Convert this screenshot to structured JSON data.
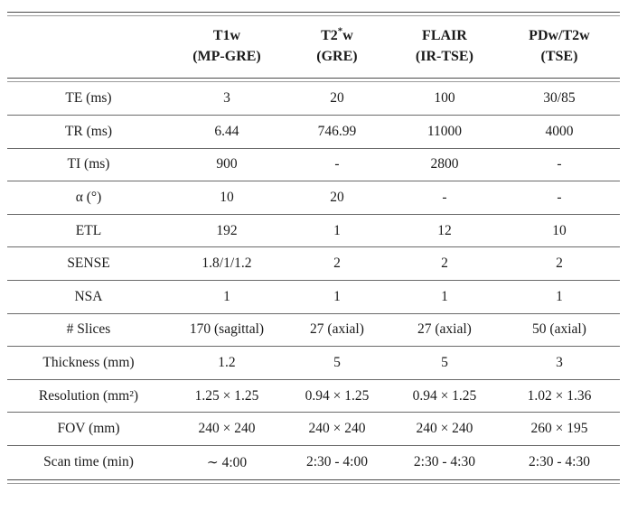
{
  "table": {
    "columns": [
      {
        "title": "",
        "subtitle": ""
      },
      {
        "title": "T1w",
        "subtitle": "(MP-GRE)"
      },
      {
        "title": "T2",
        "title_sup": "*",
        "title_end": "w",
        "subtitle": "(GRE)"
      },
      {
        "title": "FLAIR",
        "subtitle": "(IR-TSE)"
      },
      {
        "title": "PDw/T2w",
        "subtitle": "(TSE)"
      }
    ],
    "rows": [
      {
        "label": "TE (ms)",
        "values": [
          "3",
          "20",
          "100",
          "30/85"
        ]
      },
      {
        "label": "TR (ms)",
        "values": [
          "6.44",
          "746.99",
          "11000",
          "4000"
        ]
      },
      {
        "label": "TI (ms)",
        "values": [
          "900",
          "-",
          "2800",
          "-"
        ]
      },
      {
        "label": "α (°)",
        "values": [
          "10",
          "20",
          "-",
          "-"
        ]
      },
      {
        "label": "ETL",
        "values": [
          "192",
          "1",
          "12",
          "10"
        ]
      },
      {
        "label": "SENSE",
        "values": [
          "1.8/1/1.2",
          "2",
          "2",
          "2"
        ]
      },
      {
        "label": "NSA",
        "values": [
          "1",
          "1",
          "1",
          "1"
        ]
      },
      {
        "label": "# Slices",
        "values": [
          "170 (sagittal)",
          "27 (axial)",
          "27 (axial)",
          "50 (axial)"
        ]
      },
      {
        "label": "Thickness (mm)",
        "values": [
          "1.2",
          "5",
          "5",
          "3"
        ]
      },
      {
        "label": "Resolution (mm²)",
        "values": [
          "1.25 × 1.25",
          "0.94 × 1.25",
          "0.94 × 1.25",
          "1.02 × 1.36"
        ]
      },
      {
        "label": "FOV (mm)",
        "values": [
          "240 × 240",
          "240 × 240",
          "240 × 240",
          "260 × 195"
        ]
      },
      {
        "label": "Scan time (min)",
        "values": [
          "∼ 4:00",
          "2:30 - 4:00",
          "2:30 - 4:30",
          "2:30 - 4:30"
        ]
      }
    ]
  }
}
